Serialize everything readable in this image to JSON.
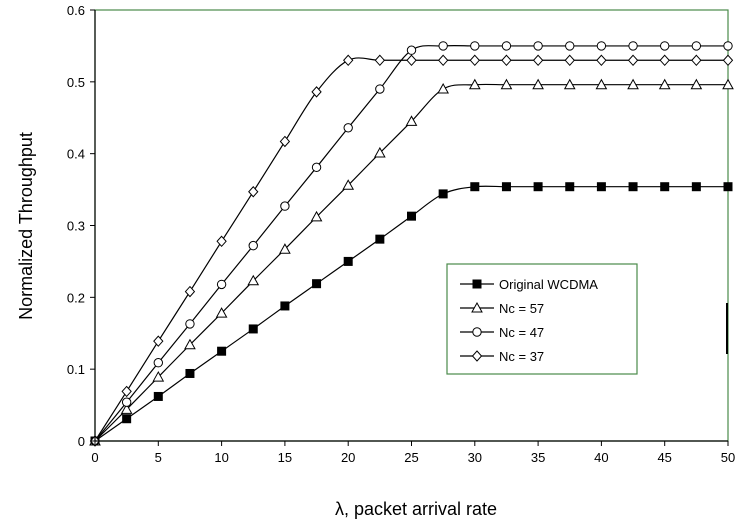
{
  "chart_data": {
    "type": "line",
    "xlabel": "λ, packet arrival rate",
    "ylabel": "Normalized Throughput",
    "xlim": [
      0,
      50
    ],
    "ylim": [
      0,
      0.6
    ],
    "xticks": [
      "0",
      "5",
      "10",
      "15",
      "20",
      "25",
      "30",
      "35",
      "40",
      "45",
      "50"
    ],
    "yticks": [
      "0",
      "0.1",
      "0.2",
      "0.3",
      "0.4",
      "0.5",
      "0.6"
    ],
    "grid": false,
    "legend_position": "lower-right",
    "series": [
      {
        "name": "Original WCDMA",
        "marker": "filled-square",
        "x": [
          0,
          2.5,
          5,
          7.5,
          10,
          12.5,
          15,
          17.5,
          20,
          22.5,
          25,
          27.5,
          30,
          32.5,
          35,
          37.5,
          40,
          42.5,
          45,
          47.5,
          50
        ],
        "y": [
          0,
          0.031,
          0.062,
          0.094,
          0.125,
          0.156,
          0.188,
          0.219,
          0.25,
          0.281,
          0.313,
          0.344,
          0.354,
          0.354,
          0.354,
          0.354,
          0.354,
          0.354,
          0.354,
          0.354,
          0.354
        ]
      },
      {
        "name": "Nc = 57",
        "marker": "open-triangle",
        "x": [
          0,
          2.5,
          5,
          7.5,
          10,
          12.5,
          15,
          17.5,
          20,
          22.5,
          25,
          27.5,
          30,
          32.5,
          35,
          37.5,
          40,
          42.5,
          45,
          47.5,
          50
        ],
        "y": [
          0,
          0.044,
          0.089,
          0.134,
          0.178,
          0.223,
          0.267,
          0.312,
          0.356,
          0.401,
          0.445,
          0.49,
          0.496,
          0.496,
          0.496,
          0.496,
          0.496,
          0.496,
          0.496,
          0.496,
          0.496
        ]
      },
      {
        "name": "Nc = 47",
        "marker": "open-circle",
        "x": [
          0,
          2.5,
          5,
          7.5,
          10,
          12.5,
          15,
          17.5,
          20,
          22.5,
          25,
          27.5,
          30,
          32.5,
          35,
          37.5,
          40,
          42.5,
          45,
          47.5,
          50
        ],
        "y": [
          0,
          0.054,
          0.109,
          0.163,
          0.218,
          0.272,
          0.327,
          0.381,
          0.436,
          0.49,
          0.544,
          0.55,
          0.55,
          0.55,
          0.55,
          0.55,
          0.55,
          0.55,
          0.55,
          0.55,
          0.55
        ]
      },
      {
        "name": "Nc = 37",
        "marker": "open-diamond",
        "x": [
          0,
          2.5,
          5,
          7.5,
          10,
          12.5,
          15,
          17.5,
          20,
          22.5,
          25,
          27.5,
          30,
          32.5,
          35,
          37.5,
          40,
          42.5,
          45,
          47.5,
          50
        ],
        "y": [
          0,
          0.069,
          0.139,
          0.208,
          0.278,
          0.347,
          0.417,
          0.486,
          0.53,
          0.53,
          0.53,
          0.53,
          0.53,
          0.53,
          0.53,
          0.53,
          0.53,
          0.53,
          0.53,
          0.53,
          0.53
        ]
      }
    ]
  },
  "colors": {
    "plot_border": "#4a8a4a",
    "axis": "#000000",
    "series_line": "#000000",
    "legend_border": "#4a8a4a"
  }
}
